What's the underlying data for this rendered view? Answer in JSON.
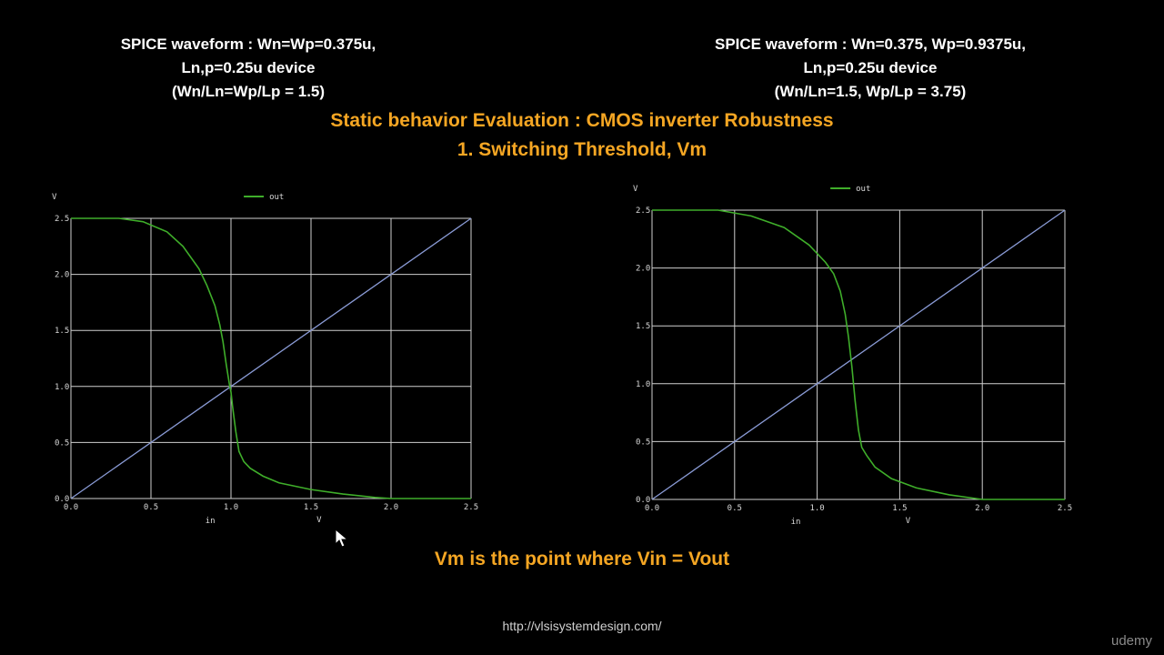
{
  "captions": {
    "left": {
      "line1": "SPICE waveform : Wn=Wp=0.375u,",
      "line2": "Ln,p=0.25u device",
      "line3": "(Wn/Ln=Wp/Lp = 1.5)"
    },
    "right": {
      "line1": "SPICE waveform : Wn=0.375, Wp=0.9375u,",
      "line2": "Ln,p=0.25u device",
      "line3": "(Wn/Ln=1.5, Wp/Lp = 3.75)"
    }
  },
  "heading": {
    "line1": "Static behavior Evaluation : CMOS inverter Robustness",
    "line2": "1. Switching Threshold, Vm"
  },
  "footnote": "Vm is the point where Vin = Vout",
  "url": "http://vlsisystemdesign.com/",
  "brand": "udemy",
  "colors": {
    "accent": "#f5a623",
    "trace_out": "#3fae2a",
    "trace_diag": "#8a9bd6",
    "grid": "#cfcfcf"
  },
  "chart_data": [
    {
      "type": "line",
      "xlabel": "in",
      "xunit": "V",
      "yunit": "V",
      "xlim": [
        0,
        2.5
      ],
      "ylim": [
        0,
        2.5
      ],
      "xticks": [
        "0.0",
        "0.5",
        "1.0",
        "1.5",
        "2.0",
        "2.5"
      ],
      "yticks": [
        "0.0",
        "0.5",
        "1.0",
        "1.5",
        "2.0",
        "2.5"
      ],
      "grid": true,
      "legend": "top",
      "series": [
        {
          "name": "out",
          "x": [
            0,
            0.3,
            0.45,
            0.6,
            0.7,
            0.8,
            0.85,
            0.9,
            0.93,
            0.95,
            0.97,
            0.99,
            1.0,
            1.01,
            1.03,
            1.05,
            1.08,
            1.12,
            1.2,
            1.3,
            1.5,
            1.7,
            1.9,
            2.0,
            2.5
          ],
          "y": [
            2.5,
            2.5,
            2.47,
            2.38,
            2.25,
            2.05,
            1.9,
            1.72,
            1.55,
            1.4,
            1.2,
            1.02,
            0.95,
            0.82,
            0.6,
            0.42,
            0.33,
            0.27,
            0.2,
            0.14,
            0.08,
            0.04,
            0.01,
            0.0,
            0.0
          ]
        },
        {
          "x": [
            0,
            2.5
          ],
          "y": [
            0,
            2.5
          ]
        }
      ]
    },
    {
      "type": "line",
      "xlabel": "in",
      "xunit": "V",
      "yunit": "V",
      "xlim": [
        0,
        2.5
      ],
      "ylim": [
        0,
        2.5
      ],
      "xticks": [
        "0.0",
        "0.5",
        "1.0",
        "1.5",
        "2.0",
        "2.5"
      ],
      "yticks": [
        "0.0",
        "0.5",
        "1.0",
        "1.5",
        "2.0",
        "2.5"
      ],
      "grid": true,
      "legend": "top",
      "series": [
        {
          "name": "out",
          "x": [
            0,
            0.4,
            0.6,
            0.8,
            0.95,
            1.05,
            1.1,
            1.14,
            1.17,
            1.19,
            1.21,
            1.23,
            1.25,
            1.27,
            1.3,
            1.35,
            1.45,
            1.6,
            1.8,
            2.0,
            2.5
          ],
          "y": [
            2.5,
            2.5,
            2.45,
            2.35,
            2.2,
            2.05,
            1.95,
            1.8,
            1.6,
            1.4,
            1.15,
            0.85,
            0.6,
            0.45,
            0.38,
            0.28,
            0.18,
            0.1,
            0.04,
            0.0,
            0.0
          ]
        },
        {
          "x": [
            0,
            2.5
          ],
          "y": [
            0,
            2.5
          ]
        }
      ]
    }
  ]
}
